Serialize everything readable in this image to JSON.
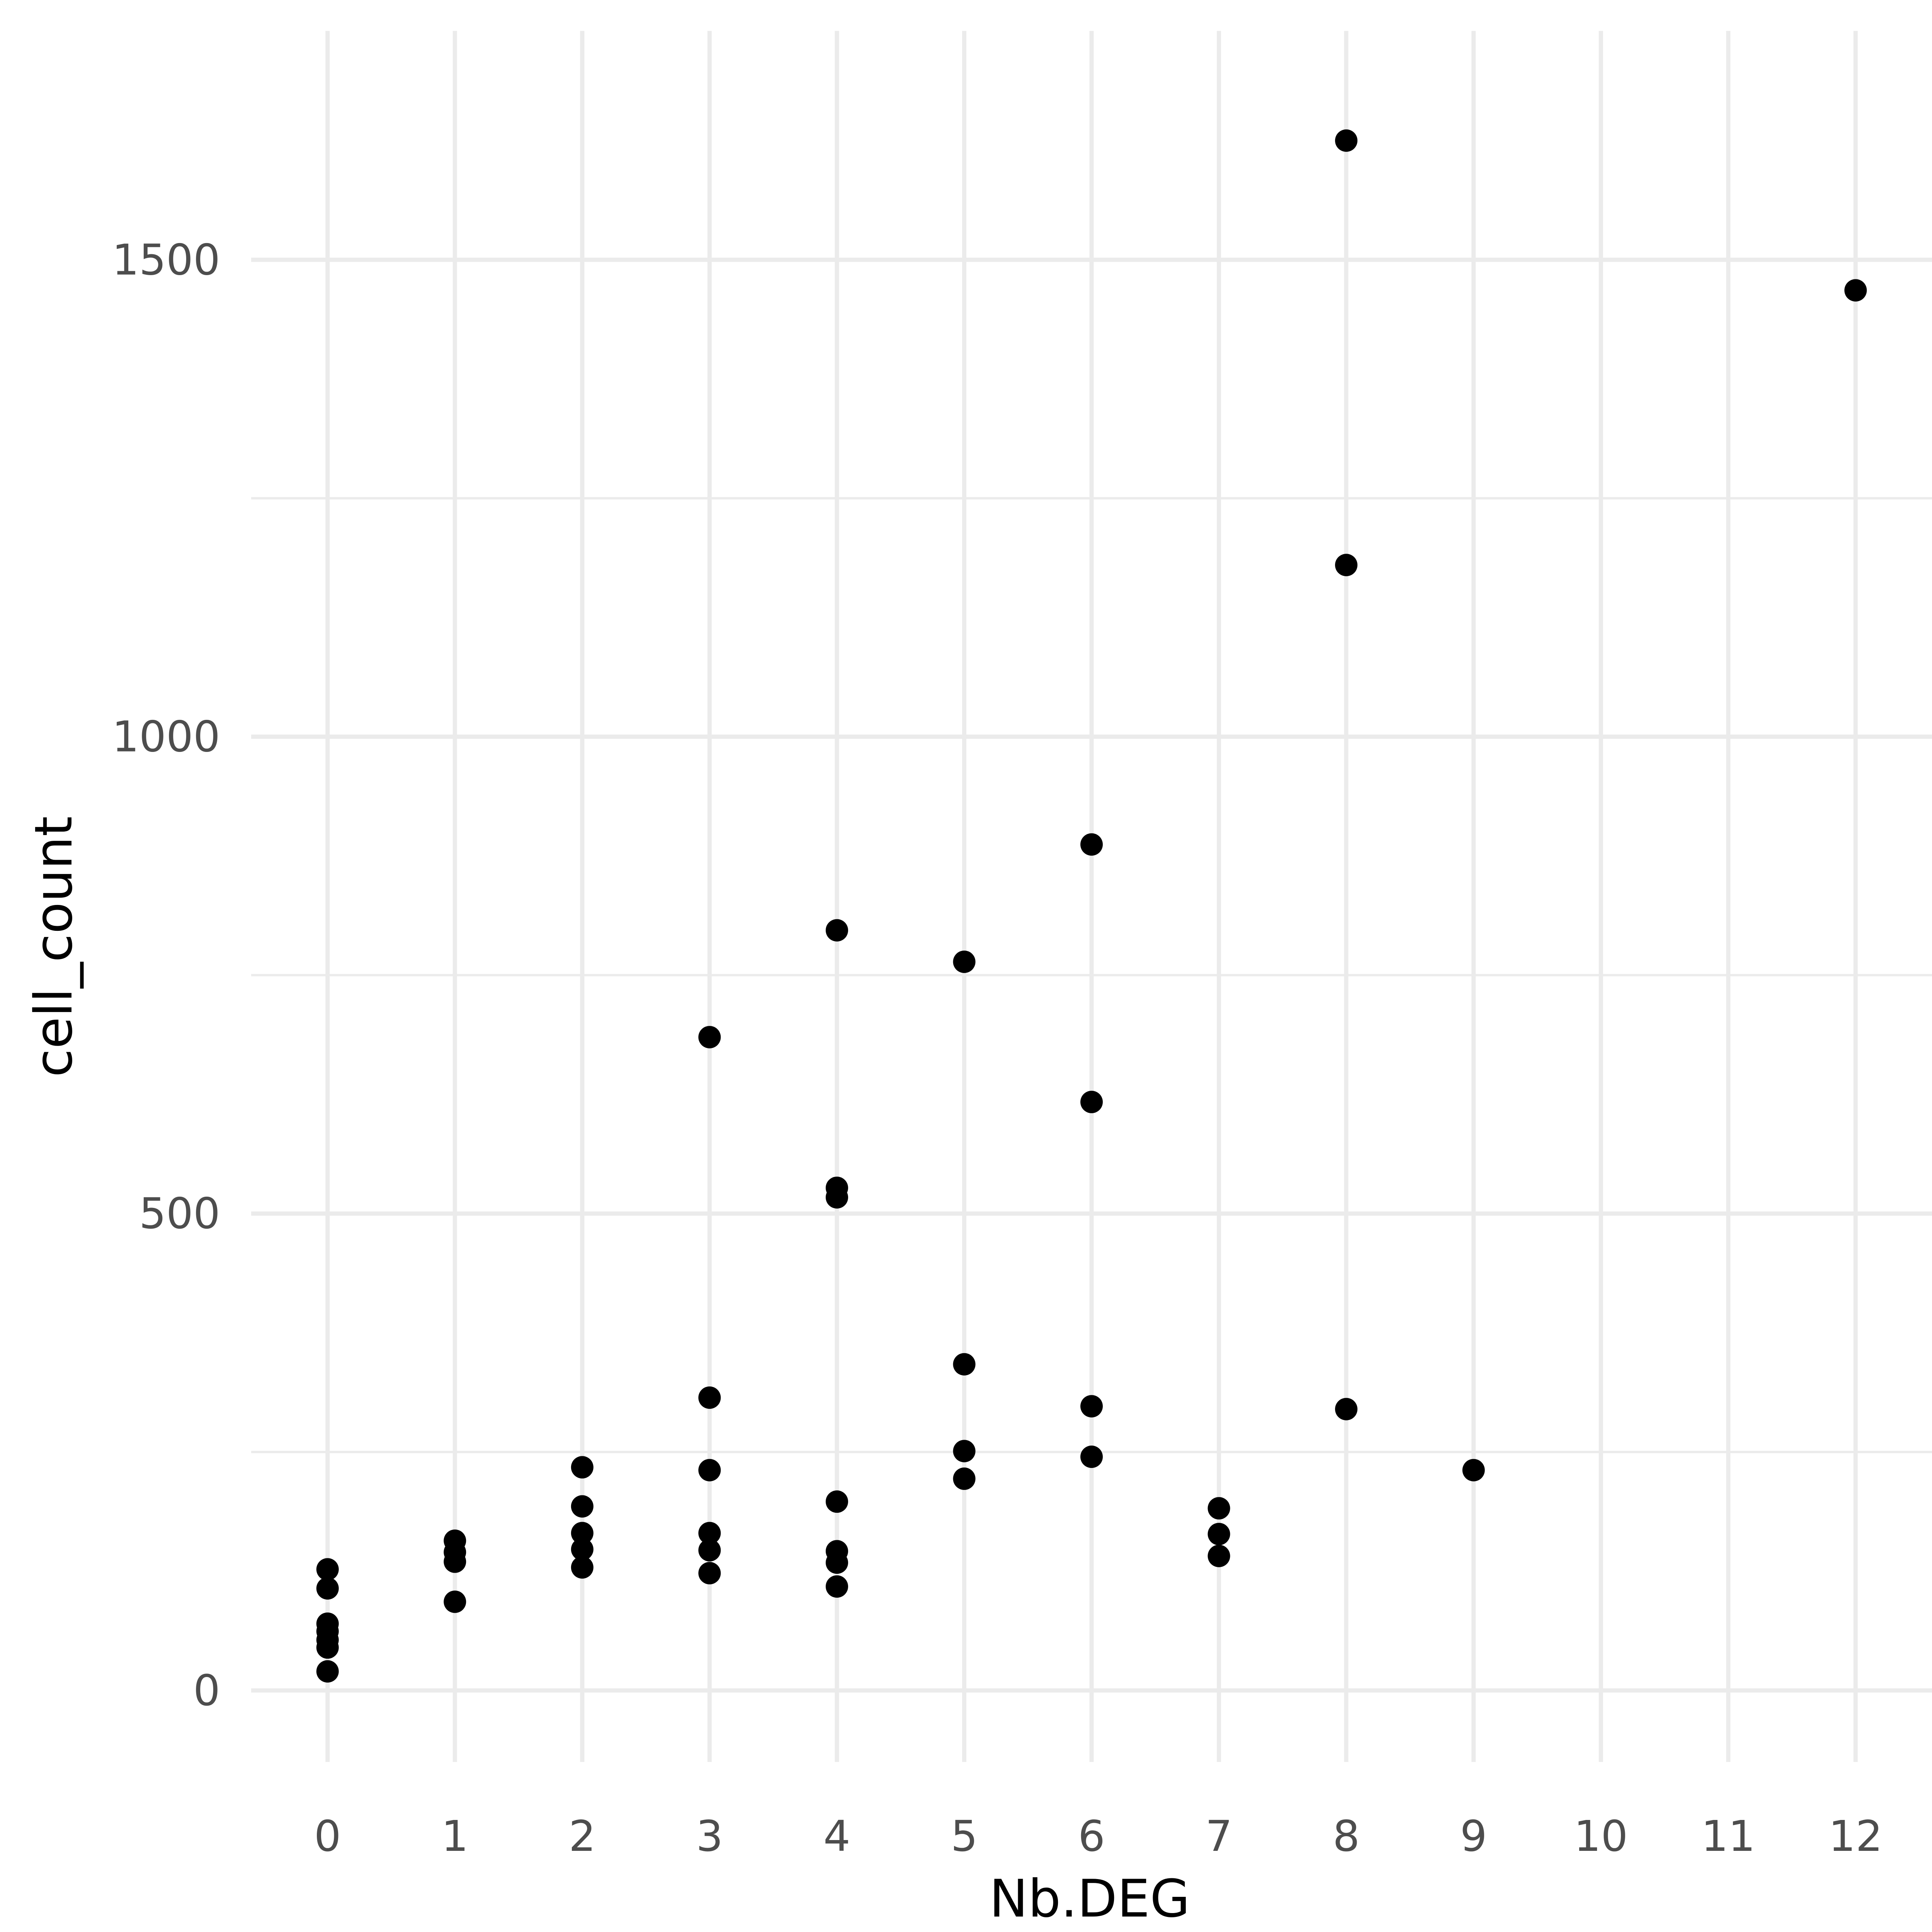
{
  "chart_data": {
    "type": "scatter",
    "title": "",
    "xlabel": "Nb.DEG",
    "ylabel": "cell_count",
    "xlim": [
      -0.6,
      12.6
    ],
    "ylim": [
      -75,
      1740
    ],
    "x_ticks": [
      0,
      1,
      2,
      3,
      4,
      5,
      6,
      7,
      8,
      9,
      10,
      11,
      12
    ],
    "x_tick_labels": [
      "0",
      "1",
      "2",
      "3",
      "4",
      "5",
      "6",
      "7",
      "8",
      "9",
      "10",
      "11",
      "12"
    ],
    "y_ticks": [
      0,
      500,
      1000,
      1500
    ],
    "y_tick_labels": [
      "0",
      "500",
      "1000",
      "1500"
    ],
    "y_minor_ticks": [
      250,
      750,
      1250
    ],
    "grid": true,
    "legend": "none",
    "colors": {
      "point": "#000000",
      "grid": "#ebebeb",
      "tick_text": "#4d4d4d",
      "background": "#ffffff"
    },
    "points": [
      {
        "x": 0,
        "y": 127
      },
      {
        "x": 0,
        "y": 107
      },
      {
        "x": 0,
        "y": 70
      },
      {
        "x": 0,
        "y": 62
      },
      {
        "x": 0,
        "y": 53
      },
      {
        "x": 0,
        "y": 45
      },
      {
        "x": 0,
        "y": 20
      },
      {
        "x": 1,
        "y": 157
      },
      {
        "x": 1,
        "y": 145
      },
      {
        "x": 1,
        "y": 135
      },
      {
        "x": 1,
        "y": 93
      },
      {
        "x": 2,
        "y": 234
      },
      {
        "x": 2,
        "y": 193
      },
      {
        "x": 2,
        "y": 165
      },
      {
        "x": 2,
        "y": 148
      },
      {
        "x": 2,
        "y": 129
      },
      {
        "x": 3,
        "y": 685
      },
      {
        "x": 3,
        "y": 307
      },
      {
        "x": 3,
        "y": 231
      },
      {
        "x": 3,
        "y": 165
      },
      {
        "x": 3,
        "y": 147
      },
      {
        "x": 3,
        "y": 123
      },
      {
        "x": 4,
        "y": 797
      },
      {
        "x": 4,
        "y": 527
      },
      {
        "x": 4,
        "y": 517
      },
      {
        "x": 4,
        "y": 198
      },
      {
        "x": 4,
        "y": 146
      },
      {
        "x": 4,
        "y": 134
      },
      {
        "x": 4,
        "y": 109
      },
      {
        "x": 5,
        "y": 764
      },
      {
        "x": 5,
        "y": 342
      },
      {
        "x": 5,
        "y": 251
      },
      {
        "x": 5,
        "y": 222
      },
      {
        "x": 6,
        "y": 887
      },
      {
        "x": 6,
        "y": 617
      },
      {
        "x": 6,
        "y": 298
      },
      {
        "x": 6,
        "y": 245
      },
      {
        "x": 7,
        "y": 191
      },
      {
        "x": 7,
        "y": 164
      },
      {
        "x": 7,
        "y": 141
      },
      {
        "x": 8,
        "y": 1625
      },
      {
        "x": 8,
        "y": 1180
      },
      {
        "x": 8,
        "y": 295
      },
      {
        "x": 9,
        "y": 231
      },
      {
        "x": 12,
        "y": 1468
      }
    ]
  }
}
